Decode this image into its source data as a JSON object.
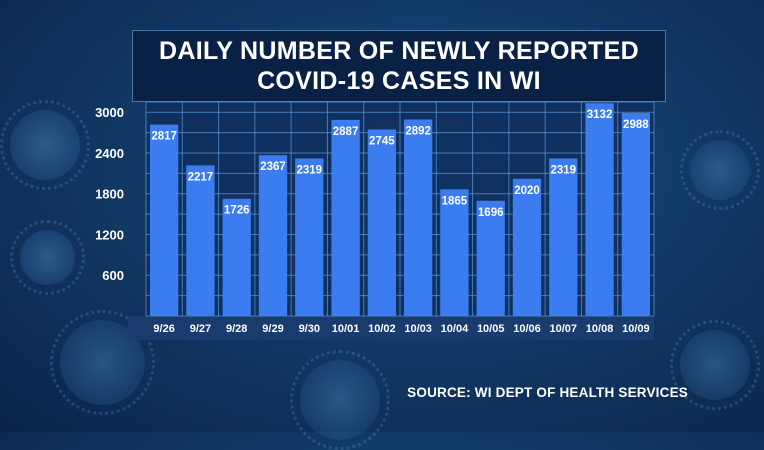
{
  "title_lines": [
    "DAILY NUMBER OF NEWLY REPORTED",
    "COVID-19 CASES IN WI"
  ],
  "source": "SOURCE: WI DEPT OF HEALTH SERVICES",
  "colors": {
    "bar": "#3b7df0",
    "grid": "#5b9ae0",
    "plot_bg": "#0f2e5c",
    "xlabel_bg": "#1a3b6e",
    "text": "#ffffff"
  },
  "chart_data": {
    "type": "bar",
    "title": "DAILY NUMBER OF NEWLY REPORTED COVID-19 CASES IN WI",
    "xlabel": "",
    "ylabel": "",
    "categories": [
      "9/26",
      "9/27",
      "9/28",
      "9/29",
      "9/30",
      "10/01",
      "10/02",
      "10/03",
      "10/04",
      "10/05",
      "10/06",
      "10/07",
      "10/08",
      "10/09"
    ],
    "values": [
      2817,
      2217,
      1726,
      2367,
      2319,
      2887,
      2745,
      2892,
      1865,
      1696,
      2020,
      2319,
      3132,
      2988
    ],
    "data_labels": [
      "2817",
      "2217",
      "1726",
      "2367",
      "2319",
      "2887",
      "2745",
      "2892",
      "1865",
      "1696",
      "2020",
      "2319",
      "3132",
      "2988"
    ],
    "yticks": [
      600,
      1200,
      1800,
      2400,
      3000
    ],
    "ytick_labels": [
      "600",
      "1200",
      "1800",
      "2400",
      "3000"
    ],
    "ylim": [
      0,
      3150
    ],
    "grid": true,
    "legend": "none"
  }
}
